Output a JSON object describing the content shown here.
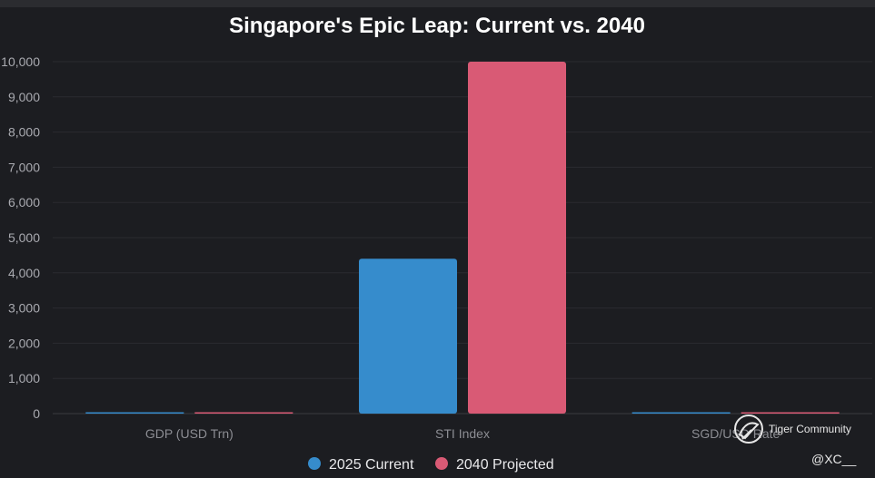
{
  "chart_data": {
    "type": "bar",
    "title": "Singapore's Epic Leap: Current vs. 2040",
    "categories": [
      "GDP (USD Trn)",
      "STI Index",
      "SGD/USD Rate"
    ],
    "series": [
      {
        "name": "2025 Current",
        "values": [
          0.5,
          4400,
          1.35
        ],
        "color": "#368ccc"
      },
      {
        "name": "2040 Projected",
        "values": [
          1.5,
          10000,
          1.1
        ],
        "color": "#d95a75"
      }
    ],
    "yticks": [
      "0",
      "1,000",
      "2,000",
      "3,000",
      "4,000",
      "5,000",
      "6,000",
      "7,000",
      "8,000",
      "9,000",
      "10,000"
    ],
    "ylim": [
      0,
      10000
    ],
    "grid": true,
    "legend_position": "bottom"
  },
  "watermark": {
    "brand": "Tiger Community",
    "handle": "@XC__"
  }
}
